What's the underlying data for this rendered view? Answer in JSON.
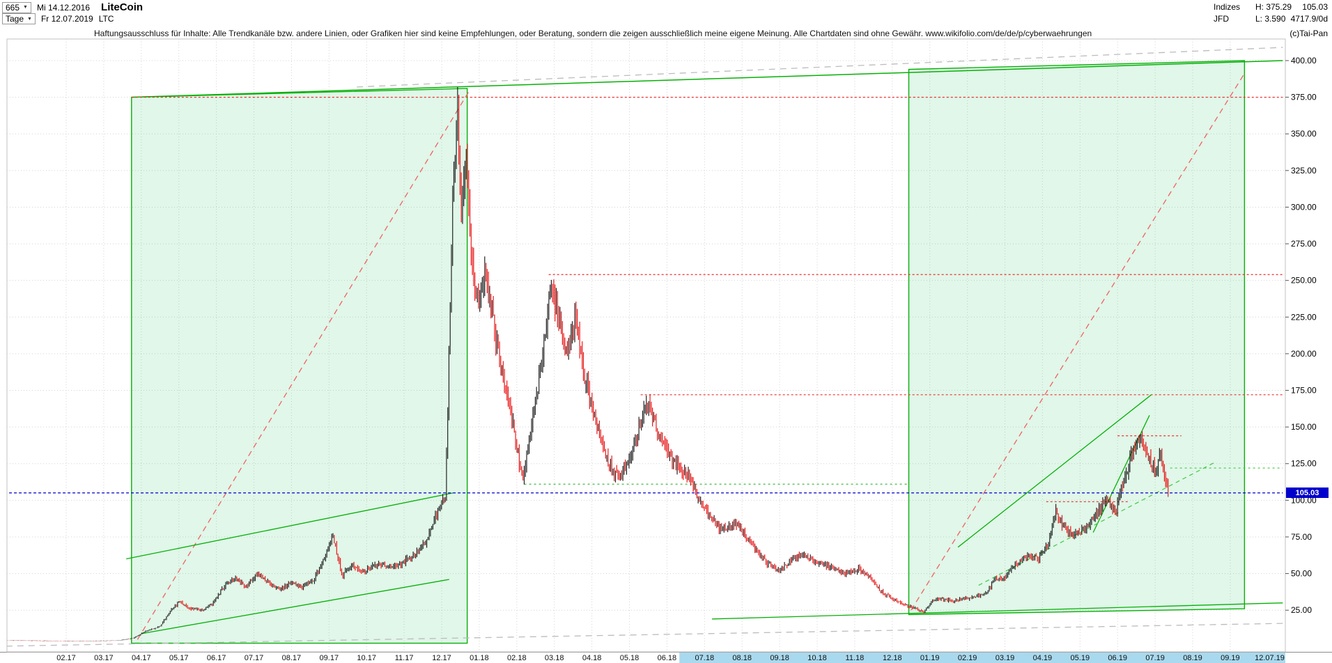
{
  "header": {
    "bars_count": "665",
    "start_date": "Mi 14.12.2016",
    "period": "Tage",
    "end_date": "Fr 12.07.2019",
    "symbol": "LTC",
    "title": "LiteCoin",
    "right": {
      "group": "Indizes",
      "provider": "JFD",
      "high_label": "H: 375.29",
      "low_label": "L: 3.590",
      "last": "105.03",
      "volume": "4717.9/0d",
      "copyright": "(c)Tai-Pan"
    }
  },
  "disclaimer": "Haftungsausschluss für Inhalte: Alle Trendkanäle bzw. andere Linien, oder Grafiken hier sind keine Empfehlungen, oder Beratung, sondern die zeigen ausschließlich meine eigene Meinung. Alle Chartdaten sind ohne Gewähr.  www.wikifolio.com/de/de/p/cyberwaehrungen",
  "price_badge": "105.03",
  "colors": {
    "up": "#1a1a1a",
    "down": "#e81010",
    "trend_green": "#07b007",
    "box_fill": "rgba(0,190,70,0.12)",
    "resistance_red": "#f03030",
    "last_price_blue": "#0000cc",
    "grid": "#d4d4d4",
    "range_strip": "#a9d9ee"
  },
  "chart_data": {
    "type": "candlestick",
    "title": "LiteCoin (LTC) daily, 14.12.2016 - 12.07.2019",
    "x_axis": {
      "unit": "months since 2017-02-01",
      "labels": [
        "02.17",
        "03.17",
        "04.17",
        "05.17",
        "06.17",
        "07.17",
        "08.17",
        "09.17",
        "10.17",
        "11.17",
        "12.17",
        "01.18",
        "02.18",
        "03.18",
        "04.18",
        "05.18",
        "06.18",
        "07.18",
        "08.18",
        "09.18",
        "10.18",
        "11.18",
        "12.18",
        "01.19",
        "02.19",
        "03.19",
        "04.19",
        "05.19",
        "06.19",
        "07.19",
        "08.19",
        "09.19"
      ],
      "last_date_label": "12.07.19",
      "last_date_t": 32.05
    },
    "y_axis": {
      "min": 0,
      "max": 412,
      "ticks": [
        25,
        50,
        75,
        100,
        125,
        150,
        175,
        200,
        225,
        250,
        275,
        300,
        325,
        350,
        375,
        400
      ],
      "tick_format": "0.00"
    },
    "last_price": 105.03,
    "period_high": 375.29,
    "period_low": 3.59,
    "bars_per_month": 30.44,
    "range_highlight_t": 16.33,
    "series_anchors": [
      [
        -1.6,
        4.4
      ],
      [
        -0.9,
        4.2
      ],
      [
        0.0,
        3.9
      ],
      [
        0.8,
        4.0
      ],
      [
        1.4,
        4.3
      ],
      [
        1.8,
        6.0
      ],
      [
        2.1,
        10.5
      ],
      [
        2.5,
        14.0
      ],
      [
        2.8,
        25.0
      ],
      [
        3.0,
        31.0
      ],
      [
        3.3,
        26.0
      ],
      [
        3.6,
        25.0
      ],
      [
        3.9,
        29.0
      ],
      [
        4.2,
        41.0
      ],
      [
        4.5,
        47.0
      ],
      [
        4.8,
        41.0
      ],
      [
        5.1,
        50.0
      ],
      [
        5.4,
        43.0
      ],
      [
        5.7,
        39.0
      ],
      [
        6.0,
        44.0
      ],
      [
        6.3,
        41.0
      ],
      [
        6.6,
        46.0
      ],
      [
        6.9,
        61.0
      ],
      [
        7.1,
        76.0
      ],
      [
        7.35,
        49.0
      ],
      [
        7.6,
        56.0
      ],
      [
        7.9,
        51.0
      ],
      [
        8.3,
        56.0
      ],
      [
        8.7,
        54.0
      ],
      [
        9.0,
        58.0
      ],
      [
        9.3,
        63.0
      ],
      [
        9.6,
        73.0
      ],
      [
        9.9,
        92.0
      ],
      [
        10.1,
        102.0
      ],
      [
        10.3,
        310.0
      ],
      [
        10.42,
        368.0
      ],
      [
        10.52,
        298.0
      ],
      [
        10.65,
        328.0
      ],
      [
        10.8,
        262.0
      ],
      [
        11.0,
        232.0
      ],
      [
        11.15,
        252.0
      ],
      [
        11.35,
        225.0
      ],
      [
        11.55,
        192.0
      ],
      [
        11.75,
        172.0
      ],
      [
        11.95,
        145.0
      ],
      [
        12.15,
        112.0
      ],
      [
        12.4,
        152.0
      ],
      [
        12.65,
        190.0
      ],
      [
        12.9,
        245.0
      ],
      [
        13.1,
        228.0
      ],
      [
        13.3,
        200.0
      ],
      [
        13.55,
        225.0
      ],
      [
        13.8,
        185.0
      ],
      [
        14.1,
        152.0
      ],
      [
        14.4,
        128.0
      ],
      [
        14.7,
        116.0
      ],
      [
        15.0,
        128.0
      ],
      [
        15.25,
        148.0
      ],
      [
        15.5,
        166.0
      ],
      [
        15.75,
        145.0
      ],
      [
        16.0,
        134.0
      ],
      [
        16.3,
        122.0
      ],
      [
        16.6,
        116.0
      ],
      [
        16.9,
        98.0
      ],
      [
        17.2,
        86.0
      ],
      [
        17.5,
        80.0
      ],
      [
        17.8,
        84.0
      ],
      [
        18.1,
        76.0
      ],
      [
        18.4,
        64.0
      ],
      [
        18.7,
        56.0
      ],
      [
        19.0,
        52.0
      ],
      [
        19.3,
        59.0
      ],
      [
        19.6,
        63.0
      ],
      [
        19.9,
        58.0
      ],
      [
        20.2,
        56.0
      ],
      [
        20.5,
        53.0
      ],
      [
        20.8,
        50.0
      ],
      [
        21.1,
        53.0
      ],
      [
        21.4,
        47.0
      ],
      [
        21.7,
        38.0
      ],
      [
        22.0,
        33.0
      ],
      [
        22.3,
        29.0
      ],
      [
        22.6,
        26.0
      ],
      [
        22.85,
        23.5
      ],
      [
        23.05,
        31.0
      ],
      [
        23.3,
        33.0
      ],
      [
        23.6,
        31.0
      ],
      [
        23.9,
        33.0
      ],
      [
        24.2,
        34.0
      ],
      [
        24.5,
        36.0
      ],
      [
        24.7,
        46.0
      ],
      [
        25.0,
        47.0
      ],
      [
        25.3,
        57.0
      ],
      [
        25.6,
        61.0
      ],
      [
        25.9,
        60.0
      ],
      [
        26.15,
        70.0
      ],
      [
        26.35,
        93.0
      ],
      [
        26.55,
        82.0
      ],
      [
        26.8,
        76.0
      ],
      [
        27.1,
        79.0
      ],
      [
        27.4,
        89.0
      ],
      [
        27.7,
        101.0
      ],
      [
        27.95,
        93.0
      ],
      [
        28.15,
        112.0
      ],
      [
        28.4,
        133.0
      ],
      [
        28.6,
        141.0
      ],
      [
        28.8,
        130.0
      ],
      [
        29.0,
        121.0
      ],
      [
        29.15,
        131.0
      ],
      [
        29.35,
        105.03
      ]
    ],
    "overlays": {
      "boxes": [
        {
          "name": "trend-box-2017",
          "points": [
            [
              1.74,
              375
            ],
            [
              10.68,
              381
            ],
            [
              10.68,
              2.5
            ],
            [
              1.74,
              2.5
            ]
          ],
          "stroke": "#07b007",
          "fill": "rgba(0,190,70,0.12)"
        },
        {
          "name": "trend-box-2019",
          "points": [
            [
              22.44,
              394
            ],
            [
              31.38,
              400
            ],
            [
              31.38,
              26
            ],
            [
              22.44,
              22
            ]
          ],
          "stroke": "#07b007",
          "fill": "rgba(0,190,70,0.12)"
        }
      ],
      "lines": [
        {
          "name": "channel-top-long",
          "p": [
            [
              1.74,
              375
            ],
            [
              32.4,
              400
            ]
          ],
          "color": "#07b007",
          "dash": null,
          "w": 1.5
        },
        {
          "name": "resistance-375",
          "p": [
            [
              1.74,
              375
            ],
            [
              32.4,
              375
            ]
          ],
          "color": "#f03030",
          "dash": "3 3",
          "w": 1.2
        },
        {
          "name": "resistance-254",
          "p": [
            [
              12.85,
              254
            ],
            [
              32.4,
              254
            ]
          ],
          "color": "#f03030",
          "dash": "3 3",
          "w": 1.2
        },
        {
          "name": "resistance-172",
          "p": [
            [
              15.3,
              172
            ],
            [
              32.4,
              172
            ]
          ],
          "color": "#f03030",
          "dash": "3 3",
          "w": 1.2
        },
        {
          "name": "uptrend-2017-steep",
          "p": [
            [
              1.9,
              5
            ],
            [
              10.75,
              380
            ]
          ],
          "color": "#f26060",
          "dash": "8 6",
          "w": 1.3
        },
        {
          "name": "uptrend-2019-steep",
          "p": [
            [
              22.5,
              25
            ],
            [
              31.35,
              390
            ]
          ],
          "color": "#f26060",
          "dash": "8 6",
          "w": 1.3
        },
        {
          "name": "channel-2017-upper",
          "p": [
            [
              1.6,
              60
            ],
            [
              10.3,
              105
            ]
          ],
          "color": "#07b007",
          "dash": null,
          "w": 1.3
        },
        {
          "name": "channel-2017-lower",
          "p": [
            [
              2.0,
              9
            ],
            [
              10.2,
              46
            ]
          ],
          "color": "#07b007",
          "dash": null,
          "w": 1.3
        },
        {
          "name": "trend-2019-main",
          "p": [
            [
              23.75,
              68
            ],
            [
              28.9,
              172
            ]
          ],
          "color": "#07b007",
          "dash": null,
          "w": 1.3
        },
        {
          "name": "trend-2019-inner",
          "p": [
            [
              27.35,
              78
            ],
            [
              28.85,
              158
            ]
          ],
          "color": "#07b007",
          "dash": null,
          "w": 1.3
        },
        {
          "name": "trend-2019-dashed",
          "p": [
            [
              24.3,
              42
            ],
            [
              30.6,
              126
            ]
          ],
          "color": "#42c842",
          "dash": "6 5",
          "w": 1.2
        },
        {
          "name": "support-111",
          "p": [
            [
              12.2,
              111
            ],
            [
              22.44,
              111
            ]
          ],
          "color": "#2fb42f",
          "dash": "3 4",
          "w": 1.2
        },
        {
          "name": "support-99-short",
          "p": [
            [
              26.1,
              99
            ],
            [
              28.3,
              99
            ]
          ],
          "color": "#f03030",
          "dash": "3 3",
          "w": 1.2
        },
        {
          "name": "level-144-short",
          "p": [
            [
              28.0,
              144
            ],
            [
              29.7,
              144
            ]
          ],
          "color": "#f03030",
          "dash": "3 3",
          "w": 1.2
        },
        {
          "name": "level-122-right",
          "p": [
            [
              29.4,
              122
            ],
            [
              32.4,
              122
            ]
          ],
          "color": "#42c842",
          "dash": "3 4",
          "w": 1.2
        },
        {
          "name": "base-green",
          "p": [
            [
              17.2,
              19
            ],
            [
              32.4,
              30
            ]
          ],
          "color": "#07b007",
          "dash": null,
          "w": 1.3
        },
        {
          "name": "longterm-gray-top",
          "p": [
            [
              7.74,
              382
            ],
            [
              32.4,
              409
            ]
          ],
          "color": "#bcbcbc",
          "dash": "9 7",
          "w": 1.3
        },
        {
          "name": "longterm-gray-bottom",
          "p": [
            [
              -1.6,
              0.5
            ],
            [
              32.4,
              16
            ]
          ],
          "color": "#bcbcbc",
          "dash": "9 7",
          "w": 1.3
        },
        {
          "name": "last-price-line",
          "p": [
            [
              -1.65,
              105.03
            ],
            [
              32.4,
              105.03
            ]
          ],
          "color": "#0000cc",
          "dash": "4 3",
          "w": 1.2
        }
      ]
    }
  }
}
